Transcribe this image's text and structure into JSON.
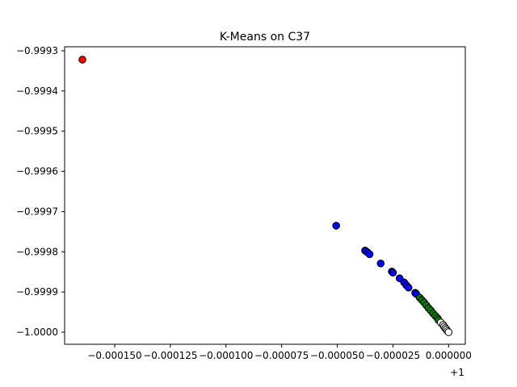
{
  "chart_data": {
    "type": "scatter",
    "title": "K-Means on C37",
    "xlabel": "",
    "ylabel": "",
    "x_offset_label": "+1",
    "xlim": [
      -0.0001725,
      7.5e-06
    ],
    "ylim": [
      -1.00003,
      -0.99929
    ],
    "x_ticks": [
      -0.00015,
      -0.000125,
      -0.0001,
      -7.5e-05,
      -5e-05,
      -2.5e-05,
      0.0
    ],
    "x_tick_labels": [
      "−0.000150",
      "−0.000125",
      "−0.000100",
      "−0.000075",
      "−0.000050",
      "−0.000025",
      "0.000000"
    ],
    "y_ticks": [
      -0.9993,
      -0.9994,
      -0.9995,
      -0.9996,
      -0.9997,
      -0.9998,
      -0.9999,
      -1.0
    ],
    "y_tick_labels": [
      "−0.9993",
      "−0.9994",
      "−0.9995",
      "−0.9996",
      "−0.9997",
      "−0.9998",
      "−0.9999",
      "−1.0000"
    ],
    "grid": false,
    "legend": "none",
    "colors": {
      "red": "#ff0000",
      "blue": "#0000ff",
      "green": "#008000",
      "white": "#ffffff",
      "edge": "#000000"
    },
    "series": [
      {
        "color": "#ff0000",
        "points": [
          [
            -0.0001645,
            -0.999322
          ]
        ]
      },
      {
        "color": "#0000ff",
        "points": [
          [
            -5.05e-05,
            -0.999735
          ],
          [
            -3.75e-05,
            -0.999797
          ],
          [
            -3.65e-05,
            -0.999801
          ],
          [
            -3.55e-05,
            -0.999806
          ],
          [
            -3.05e-05,
            -0.999829
          ],
          [
            -2.55e-05,
            -0.999849
          ],
          [
            -2.5e-05,
            -0.999852
          ],
          [
            -2.2e-05,
            -0.999866
          ],
          [
            -2e-05,
            -0.999876
          ],
          [
            -1.9e-05,
            -0.999883
          ],
          [
            -1.8e-05,
            -0.999889
          ],
          [
            -1.5e-05,
            -0.999902
          ],
          [
            -1.45e-05,
            -0.999905
          ]
        ]
      },
      {
        "color": "#008000",
        "points": [
          [
            -1.3e-05,
            -0.999914
          ],
          [
            -1.2e-05,
            -0.99992
          ],
          [
            -1.1e-05,
            -0.999926
          ],
          [
            -1e-05,
            -0.999933
          ],
          [
            -9e-06,
            -0.99994
          ],
          [
            -8e-06,
            -0.999946
          ],
          [
            -7e-06,
            -0.999953
          ],
          [
            -6e-06,
            -0.999959
          ],
          [
            -5e-06,
            -0.999965
          ],
          [
            -4.5e-06,
            -0.99997
          ]
        ]
      },
      {
        "color": "#ffffff",
        "points": [
          [
            -3.5e-06,
            -0.999976
          ],
          [
            -2.5e-06,
            -0.999982
          ],
          [
            -2e-06,
            -0.999986
          ],
          [
            -1.5e-06,
            -0.99999
          ],
          [
            -1e-06,
            -0.999993
          ],
          [
            -5e-07,
            -0.999997
          ],
          [
            0.0,
            -1.0
          ]
        ]
      }
    ]
  }
}
